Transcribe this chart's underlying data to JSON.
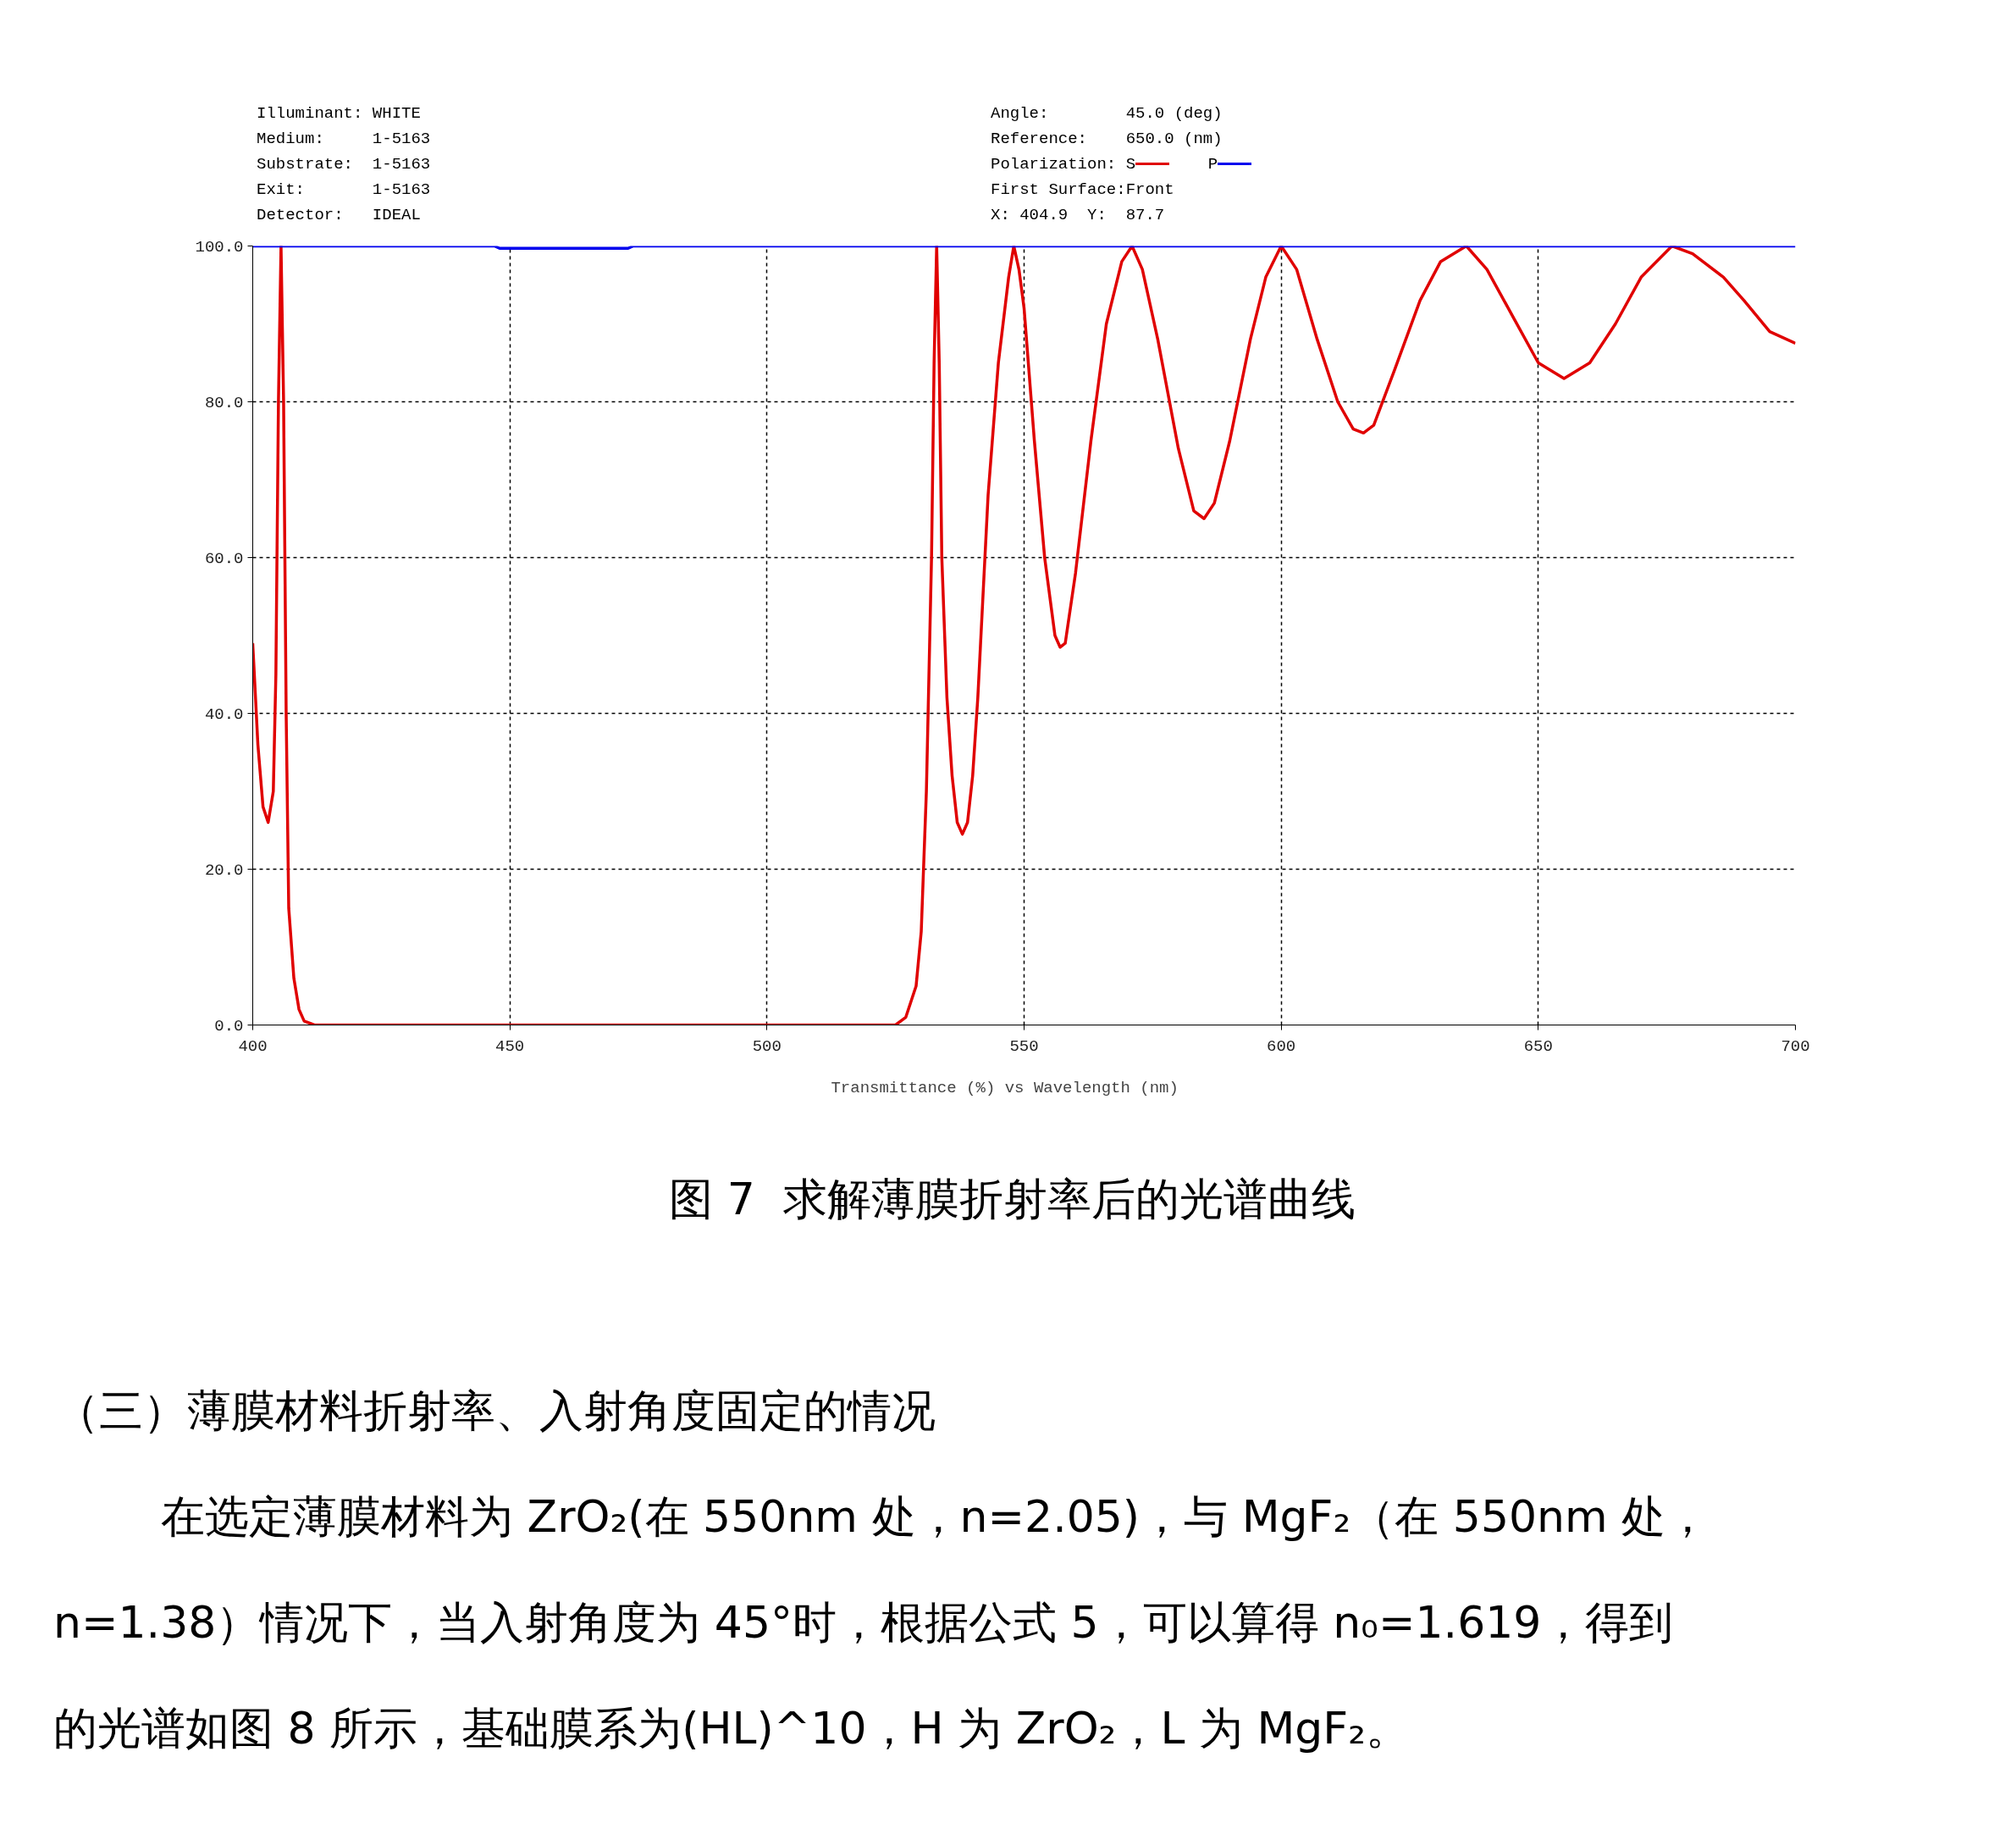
{
  "chart_data": {
    "type": "line",
    "xlabel": "Transmittance (%)   vs   Wavelength (nm)",
    "xlim": [
      400,
      700
    ],
    "xticks": [
      400,
      450,
      500,
      550,
      600,
      650,
      700
    ],
    "ylim": [
      0,
      100
    ],
    "yticks": [
      {
        "value": 0,
        "label": "0.0"
      },
      {
        "value": 20,
        "label": "20.0"
      },
      {
        "value": 40,
        "label": "40.0"
      },
      {
        "value": 60,
        "label": "60.0"
      },
      {
        "value": 80,
        "label": "80.0"
      },
      {
        "value": 100,
        "label": "100.0"
      }
    ],
    "grid": true,
    "legend": "top",
    "marker": "none",
    "line_style": "solid",
    "series": [
      {
        "name": "S",
        "color": "#e00000",
        "x": [
          400,
          401,
          402,
          403,
          404,
          404.5,
          405,
          405.5,
          406,
          406.5,
          407,
          408,
          409,
          410,
          412,
          525,
          527,
          529,
          530,
          531,
          532,
          532.5,
          533,
          533.5,
          534,
          535,
          536,
          537,
          538,
          539,
          540,
          541,
          542,
          543,
          545,
          547,
          548,
          549,
          550,
          552,
          554,
          556,
          557,
          558,
          560,
          563,
          566,
          569,
          571,
          573,
          576,
          580,
          583,
          585,
          587,
          590,
          594,
          597,
          600,
          603,
          607,
          611,
          614,
          616,
          618,
          622,
          627,
          631,
          636,
          640,
          645,
          650,
          655,
          660,
          665,
          670,
          676,
          680,
          686,
          690,
          695,
          700
        ],
        "values": [
          49,
          36,
          28,
          26,
          30,
          45,
          80,
          100,
          80,
          40,
          15,
          6,
          2,
          0.5,
          0,
          0,
          1,
          5,
          12,
          30,
          60,
          85,
          100,
          85,
          60,
          42,
          32,
          26,
          24.5,
          26,
          32,
          42,
          55,
          68,
          85,
          96,
          100,
          97,
          92,
          75,
          60,
          50,
          48.5,
          49,
          58,
          75,
          90,
          98,
          100,
          97,
          88,
          74,
          66,
          65,
          67,
          75,
          88,
          96,
          100,
          97,
          88,
          80,
          76.5,
          76,
          77,
          84,
          93,
          98,
          100,
          97,
          91,
          85,
          83,
          85,
          90,
          96,
          100,
          99,
          96,
          93,
          89,
          87.5
        ]
      },
      {
        "name": "P",
        "color": "#0000ee",
        "x": [
          400,
          447,
          448,
          473,
          474,
          700
        ],
        "values": [
          100,
          100,
          99.7,
          99.7,
          100,
          100
        ]
      }
    ],
    "annotations": [
      "Illuminant: WHITE",
      "Medium:     1-5163",
      "Substrate:  1-5163",
      "Exit:       1-5163",
      "Detector:   IDEAL",
      "Angle:        45.0 (deg)",
      "Reference:    650.0 (nm)",
      "Polarization:",
      "First Surface:Front",
      "X: 404.9  Y:  87.7",
      "图 7  求解薄膜折射率后的光谱曲线",
      "（三）薄膜材料折射率、入射角度固定的情况",
      "在选定薄膜材料为 ZrO₂(在 550nm 处，n=2.05)，与 MgF₂（在 550nm 处，",
      "n=1.38）情况下，当入射角度为 45°时，根据公式 5，可以算得 n₀=1.619，得到",
      "的光谱如图 8 所示，基础膜系为(HL)^10，H 为 ZrO₂，L 为 MgF₂。"
    ]
  }
}
